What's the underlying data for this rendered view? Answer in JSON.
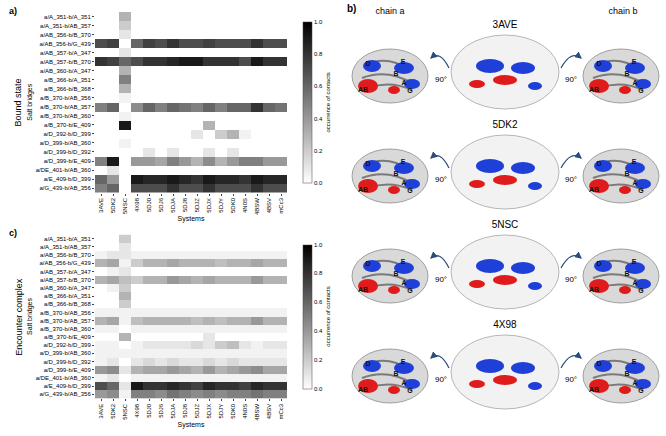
{
  "chart_data": [
    {
      "type": "heatmap",
      "title": "Bound state",
      "annotations": [
        "a)"
      ],
      "x_label": "Systems",
      "y_label": "Salt bridges",
      "x": [
        "3AVE",
        "5DK2",
        "5NSC",
        "4X98",
        "5DJ0",
        "5DJ6",
        "5DJA",
        "5DJ8",
        "5DJZ",
        "5DJX",
        "5DJY",
        "5DK0",
        "4N0S",
        "4BSW",
        "4BSV",
        "mCc3"
      ],
      "y": [
        "a/A_351-b/A_351",
        "a/A_351-b/AB_357",
        "a/AB_356-b/B_370",
        "a/AB_356-b/G_439",
        "a/AB_357-b/A_347",
        "a/AB_357-b/B_370",
        "a/AB_360-b/A_347",
        "a/B_366-b/A_351",
        "a/B_366-b/B_368",
        "a/B_370-b/AB_356",
        "a/B_370-b/AB_357",
        "a/B_370-b/AB_360",
        "a/B_370-b/E_409",
        "a/D_392-b/D_399",
        "a/D_399-b/AB_360",
        "a/D_399-b/D_392",
        "a/D_399-b/E_409",
        "a/DE_401-b/AB_360",
        "a/E_409-b/D_399",
        "a/G_439-b/AB_356"
      ],
      "z": [
        [
          0,
          0,
          0.3,
          0,
          0,
          0,
          0,
          0,
          0,
          0,
          0,
          0,
          0,
          0,
          0,
          0
        ],
        [
          0,
          0,
          0.2,
          0,
          0,
          0,
          0,
          0,
          0,
          0,
          0,
          0,
          0,
          0,
          0,
          0
        ],
        [
          0,
          0,
          0.1,
          0,
          0,
          0,
          0,
          0,
          0,
          0,
          0,
          0,
          0,
          0,
          0,
          0
        ],
        [
          0.7,
          0.75,
          0,
          0.6,
          0.75,
          0.7,
          0.8,
          0.7,
          0.7,
          0.75,
          0.7,
          0.7,
          0.7,
          0.8,
          0.7,
          0.7
        ],
        [
          0,
          0,
          0.1,
          0,
          0,
          0,
          0,
          0,
          0,
          0,
          0,
          0,
          0,
          0,
          0,
          0
        ],
        [
          0.8,
          0.75,
          0.6,
          0.7,
          0.8,
          0.8,
          0.85,
          0.9,
          0.9,
          0.8,
          0.8,
          0.8,
          0.7,
          0.9,
          0.8,
          0.8
        ],
        [
          0,
          0,
          0.3,
          0,
          0,
          0,
          0,
          0,
          0,
          0,
          0,
          0,
          0,
          0,
          0,
          0
        ],
        [
          0,
          0,
          0.5,
          0,
          0,
          0,
          0,
          0,
          0,
          0,
          0,
          0,
          0,
          0,
          0,
          0
        ],
        [
          0,
          0,
          0.3,
          0,
          0,
          0,
          0,
          0,
          0,
          0,
          0,
          0,
          0,
          0,
          0,
          0
        ],
        [
          0,
          0,
          0.05,
          0,
          0,
          0,
          0,
          0,
          0,
          0,
          0,
          0,
          0,
          0,
          0,
          0
        ],
        [
          0.5,
          0.6,
          0,
          0.45,
          0.6,
          0.5,
          0.6,
          0.55,
          0.5,
          0.6,
          0.5,
          0.6,
          0.6,
          0.8,
          0.6,
          0.55
        ],
        [
          0,
          0,
          0.05,
          0,
          0,
          0,
          0,
          0,
          0,
          0,
          0,
          0,
          0,
          0,
          0,
          0
        ],
        [
          0,
          0,
          0.9,
          0,
          0,
          0,
          0,
          0,
          0,
          0.3,
          0,
          0,
          0,
          0,
          0,
          0
        ],
        [
          0,
          0,
          0,
          0,
          0,
          0,
          0,
          0,
          0.1,
          0,
          0.2,
          0.3,
          0.05,
          0,
          0,
          0
        ],
        [
          0,
          0,
          0.05,
          0,
          0,
          0,
          0,
          0,
          0,
          0,
          0,
          0,
          0,
          0,
          0,
          0
        ],
        [
          0,
          0,
          0,
          0,
          0.1,
          0,
          0.1,
          0,
          0,
          0.1,
          0,
          0.1,
          0,
          0,
          0,
          0
        ],
        [
          0.5,
          0.9,
          0,
          0.4,
          0.4,
          0.35,
          0.5,
          0.4,
          0.3,
          0.45,
          0.3,
          0.4,
          0.5,
          0.5,
          0.4,
          0.4
        ],
        [
          0,
          0.1,
          0,
          0,
          0,
          0,
          0,
          0,
          0,
          0,
          0,
          0,
          0,
          0,
          0,
          0
        ],
        [
          0.6,
          0.4,
          0,
          0.9,
          0.85,
          0.85,
          0.9,
          0.85,
          0.8,
          0.9,
          0.85,
          0.85,
          0.8,
          0.9,
          0.85,
          0.85
        ],
        [
          0.5,
          0.6,
          0,
          0.7,
          0.7,
          0.7,
          0.8,
          0.7,
          0.7,
          0.8,
          0.7,
          0.7,
          0.7,
          0.8,
          0.7,
          0.7
        ]
      ],
      "colorbar": {
        "title": "occurrence of contacts",
        "range": [
          0,
          1
        ],
        "ticks": [
          {
            "value": 0,
            "label": "0.0"
          },
          0.2,
          0.4,
          0.6,
          0.8,
          {
            "value": 1,
            "label": "1.0"
          }
        ]
      }
    },
    {
      "type": "heatmap",
      "title": "Encounter complex",
      "annotations": [
        "c)"
      ],
      "x_label": "Systems",
      "y_label": "Salt bridges",
      "x": [
        "3AVE",
        "5DK2",
        "5NSC",
        "4X98",
        "5DJ0",
        "5DJ6",
        "5DJA",
        "5DJ8",
        "5DJZ",
        "5DJX",
        "5DJY",
        "5DK0",
        "4N0S",
        "4BSW",
        "4BSV",
        "mCc3"
      ],
      "y": [
        "a/A_351-b/A_351",
        "a/A_351-b/AB_357",
        "a/AB_356-b/B_370",
        "a/AB_356-b/G_439",
        "a/AB_357-b/A_347",
        "a/AB_357-b/B_370",
        "a/AB_360-b/A_347",
        "a/B_366-b/A_351",
        "a/B_366-b/B_368",
        "a/B_370-b/AB_356",
        "a/B_370-b/AB_357",
        "a/B_370-b/AB_360",
        "a/B_370-b/E_409",
        "a/D_392-b/D_399",
        "a/D_399-b/AB_360",
        "a/D_399-b/D_392",
        "a/D_399-b/E_409",
        "a/DE_401-b/AB_360",
        "a/E_409-b/D_399",
        "a/G_439-b/AB_356"
      ],
      "z": [
        [
          0,
          0,
          0.2,
          0,
          0,
          0,
          0,
          0,
          0,
          0,
          0,
          0,
          0,
          0,
          0,
          0
        ],
        [
          0,
          0,
          0.1,
          0,
          0,
          0,
          0,
          0,
          0,
          0,
          0,
          0,
          0,
          0,
          0,
          0
        ],
        [
          0.05,
          0.1,
          0.1,
          0.05,
          0.05,
          0.05,
          0.05,
          0.05,
          0.05,
          0.05,
          0.05,
          0.05,
          0.05,
          0.05,
          0.05,
          0.05
        ],
        [
          0.3,
          0.35,
          0.05,
          0.2,
          0.3,
          0.3,
          0.35,
          0.3,
          0.3,
          0.3,
          0.25,
          0.3,
          0.3,
          0.35,
          0.3,
          0.3
        ],
        [
          0,
          0.05,
          0.1,
          0,
          0,
          0,
          0,
          0,
          0,
          0,
          0,
          0,
          0,
          0,
          0,
          0
        ],
        [
          0.3,
          0.35,
          0.25,
          0.2,
          0.3,
          0.3,
          0.4,
          0.35,
          0.3,
          0.35,
          0.3,
          0.3,
          0.3,
          0.4,
          0.3,
          0.3
        ],
        [
          0,
          0.05,
          0.2,
          0,
          0,
          0,
          0,
          0,
          0,
          0,
          0,
          0,
          0,
          0,
          0,
          0
        ],
        [
          0,
          0,
          0.3,
          0,
          0,
          0,
          0,
          0,
          0,
          0,
          0,
          0,
          0,
          0,
          0,
          0
        ],
        [
          0,
          0,
          0.2,
          0,
          0,
          0,
          0,
          0,
          0,
          0,
          0,
          0,
          0,
          0,
          0,
          0
        ],
        [
          0.05,
          0.05,
          0.05,
          0.05,
          0.05,
          0.05,
          0.05,
          0.05,
          0.05,
          0.05,
          0.05,
          0.05,
          0.05,
          0.05,
          0.05,
          0.05
        ],
        [
          0.3,
          0.35,
          0.05,
          0.25,
          0.3,
          0.3,
          0.3,
          0.3,
          0.25,
          0.3,
          0.25,
          0.3,
          0.3,
          0.4,
          0.3,
          0.3
        ],
        [
          0.05,
          0.05,
          0,
          0.05,
          0.05,
          0.05,
          0.05,
          0.05,
          0.05,
          0.05,
          0.05,
          0.05,
          0.05,
          0.05,
          0.05,
          0.05
        ],
        [
          0,
          0,
          0.3,
          0,
          0,
          0,
          0,
          0,
          0,
          0.1,
          0,
          0,
          0,
          0,
          0,
          0
        ],
        [
          0.05,
          0.05,
          0,
          0.05,
          0.1,
          0.1,
          0.1,
          0.1,
          0.15,
          0.1,
          0.2,
          0.25,
          0.1,
          0.05,
          0.1,
          0.1
        ],
        [
          0.05,
          0.05,
          0.05,
          0.05,
          0.05,
          0.05,
          0.05,
          0.05,
          0.05,
          0.05,
          0.05,
          0.05,
          0.05,
          0.05,
          0.05,
          0.05
        ],
        [
          0.05,
          0.1,
          0,
          0.1,
          0.15,
          0.1,
          0.15,
          0.1,
          0.1,
          0.15,
          0.1,
          0.15,
          0.1,
          0.1,
          0.1,
          0.1
        ],
        [
          0.4,
          0.45,
          0.1,
          0.3,
          0.35,
          0.35,
          0.4,
          0.35,
          0.3,
          0.4,
          0.3,
          0.35,
          0.4,
          0.45,
          0.35,
          0.35
        ],
        [
          0.05,
          0.1,
          0,
          0.05,
          0.05,
          0.05,
          0.05,
          0.05,
          0.05,
          0.05,
          0.05,
          0.05,
          0.05,
          0.05,
          0.05,
          0.05
        ],
        [
          0.7,
          0.6,
          0.1,
          0.9,
          0.8,
          0.8,
          0.85,
          0.8,
          0.75,
          0.85,
          0.8,
          0.8,
          0.75,
          0.85,
          0.8,
          0.8
        ],
        [
          0.4,
          0.45,
          0.05,
          0.5,
          0.5,
          0.45,
          0.55,
          0.5,
          0.45,
          0.5,
          0.45,
          0.5,
          0.5,
          0.55,
          0.5,
          0.5
        ]
      ],
      "colorbar": {
        "title": "occurrence of contacts",
        "range": [
          0,
          1
        ],
        "ticks": [
          {
            "value": 0,
            "label": "0.0"
          },
          0.2,
          0.4,
          0.6,
          0.8,
          {
            "value": 1,
            "label": "1.0"
          }
        ]
      }
    }
  ],
  "panel_b": {
    "label": "b)",
    "columns": [
      "chain a",
      "chain b"
    ],
    "structures": [
      "3AVE",
      "5DK2",
      "5NSC",
      "4X98"
    ],
    "rotation": "90°",
    "regions": [
      "D",
      "E",
      "B",
      "A",
      "G",
      "AB"
    ]
  }
}
